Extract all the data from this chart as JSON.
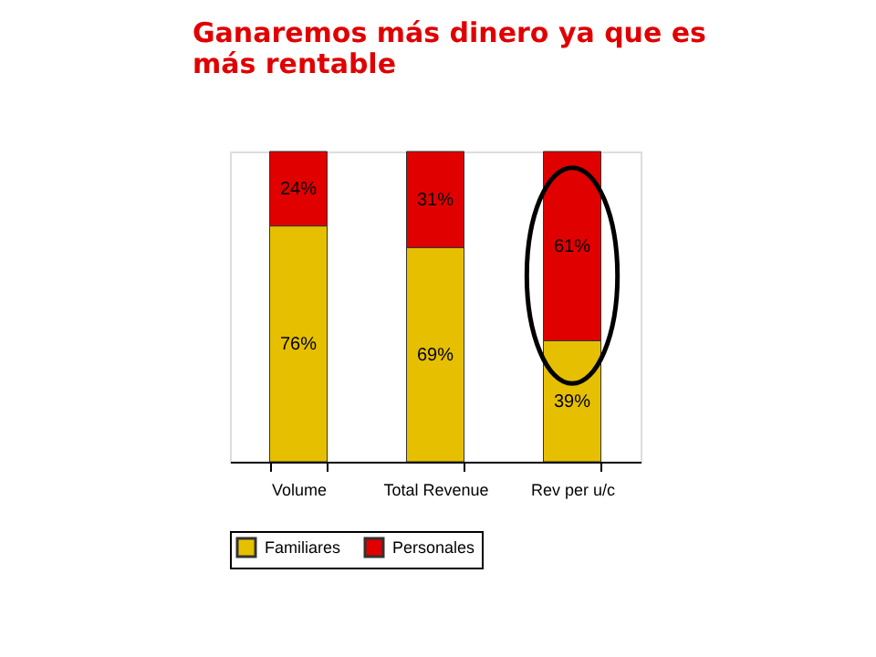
{
  "chart_data": {
    "type": "bar",
    "title": [
      "Ganaremos más dinero ya que es",
      "más rentable"
    ],
    "stacked": true,
    "legend": "bottom",
    "categories": [
      "Volume",
      "Total Revenue",
      "Rev per u/c"
    ],
    "series": [
      {
        "name": "Familiares",
        "color": "#e6c000",
        "values": [
          76,
          69,
          39
        ],
        "value_labels": [
          "76%",
          "69%",
          "39%"
        ]
      },
      {
        "name": "Personales",
        "color": "#e00000",
        "values": [
          24,
          31,
          61
        ],
        "value_labels": [
          "24%",
          "31%",
          "61%"
        ]
      }
    ]
  }
}
